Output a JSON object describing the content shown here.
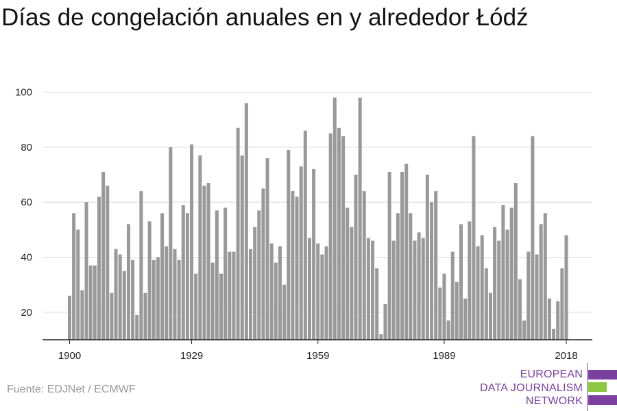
{
  "title": "Días de congelación anuales en y alrededor Łódź",
  "source": "Fuente: EDJNet / ECMWF",
  "logo": {
    "lines": [
      "EUROPEAN",
      "DATA JOURNALISM",
      "NETWORK"
    ],
    "colors": {
      "purple": "#7b3fa0",
      "green": "#8dc63f"
    }
  },
  "colors": {
    "bar": "#999999",
    "grid": "#d9d9d9",
    "axis": "#222222"
  },
  "chart_data": {
    "type": "bar",
    "title": "Días de congelación anuales en y alrededor Łódź",
    "xlabel": "",
    "ylabel": "",
    "x_ticks": [
      1900,
      1929,
      1959,
      1989,
      2018
    ],
    "y_ticks": [
      20,
      40,
      60,
      80,
      100
    ],
    "xlim": [
      1900,
      2018
    ],
    "ylim": [
      10,
      100
    ],
    "grid": true,
    "series": [
      {
        "x": [
          1900,
          1901,
          1902,
          1903,
          1904,
          1905,
          1906,
          1907,
          1908,
          1909,
          1910,
          1911,
          1912,
          1913,
          1914,
          1915,
          1916,
          1917,
          1918,
          1919,
          1920,
          1921,
          1922,
          1923,
          1924,
          1925,
          1926,
          1927,
          1928,
          1929,
          1930,
          1931,
          1932,
          1933,
          1934,
          1935,
          1936,
          1937,
          1938,
          1939,
          1940,
          1941,
          1942,
          1943,
          1944,
          1945,
          1946,
          1947,
          1948,
          1949,
          1950,
          1951,
          1952,
          1953,
          1954,
          1955,
          1956,
          1957,
          1958,
          1959,
          1960,
          1961,
          1962,
          1963,
          1964,
          1965,
          1966,
          1967,
          1968,
          1969,
          1970,
          1971,
          1972,
          1973,
          1974,
          1975,
          1976,
          1977,
          1978,
          1979,
          1980,
          1981,
          1982,
          1983,
          1984,
          1985,
          1986,
          1987,
          1988,
          1989,
          1990,
          1991,
          1992,
          1993,
          1994,
          1995,
          1996,
          1997,
          1998,
          1999,
          2000,
          2001,
          2002,
          2003,
          2004,
          2005,
          2006,
          2007,
          2008,
          2009,
          2010,
          2011,
          2012,
          2013,
          2014,
          2015,
          2016,
          2017,
          2018
        ],
        "values": [
          26,
          56,
          50,
          28,
          60,
          37,
          37,
          62,
          71,
          66,
          27,
          43,
          41,
          35,
          52,
          39,
          19,
          64,
          27,
          53,
          39,
          40,
          56,
          44,
          80,
          43,
          39,
          59,
          56,
          81,
          34,
          77,
          66,
          67,
          38,
          57,
          34,
          58,
          42,
          42,
          87,
          77,
          96,
          43,
          51,
          57,
          65,
          76,
          45,
          38,
          44,
          30,
          79,
          64,
          62,
          73,
          86,
          47,
          72,
          45,
          41,
          44,
          85,
          98,
          87,
          84,
          58,
          51,
          70,
          98,
          64,
          47,
          46,
          36,
          12,
          23,
          71,
          46,
          56,
          71,
          74,
          56,
          46,
          49,
          47,
          70,
          60,
          64,
          29,
          34,
          17,
          42,
          31,
          52,
          25,
          53,
          84,
          44,
          48,
          36,
          27,
          51,
          46,
          59,
          50,
          58,
          67,
          32,
          17,
          42,
          84,
          41,
          52,
          56,
          25,
          14,
          24,
          36,
          48
        ]
      }
    ]
  }
}
